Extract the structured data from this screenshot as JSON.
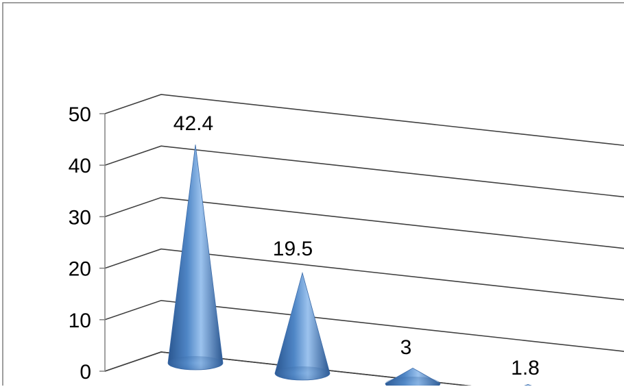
{
  "chart_data": {
    "type": "bar",
    "bar_shape": "cone",
    "three_d": true,
    "title": "",
    "xlabel": "",
    "ylabel": "",
    "categories": [
      "",
      "",
      "",
      ""
    ],
    "values": [
      42.4,
      19.5,
      3,
      1.8
    ],
    "data_labels": [
      "42.4",
      "19.5",
      "3",
      "1.8"
    ],
    "ylim": [
      0,
      50
    ],
    "yticks": [
      "0",
      "10",
      "20",
      "30",
      "40",
      "50"
    ],
    "grid": true,
    "legend": "none",
    "colors": {
      "bar_light": "#9cc3ee",
      "bar_mid": "#4f86c6",
      "bar_dark": "#2a5690",
      "gridline": "#404040",
      "axis": "#808080"
    }
  }
}
